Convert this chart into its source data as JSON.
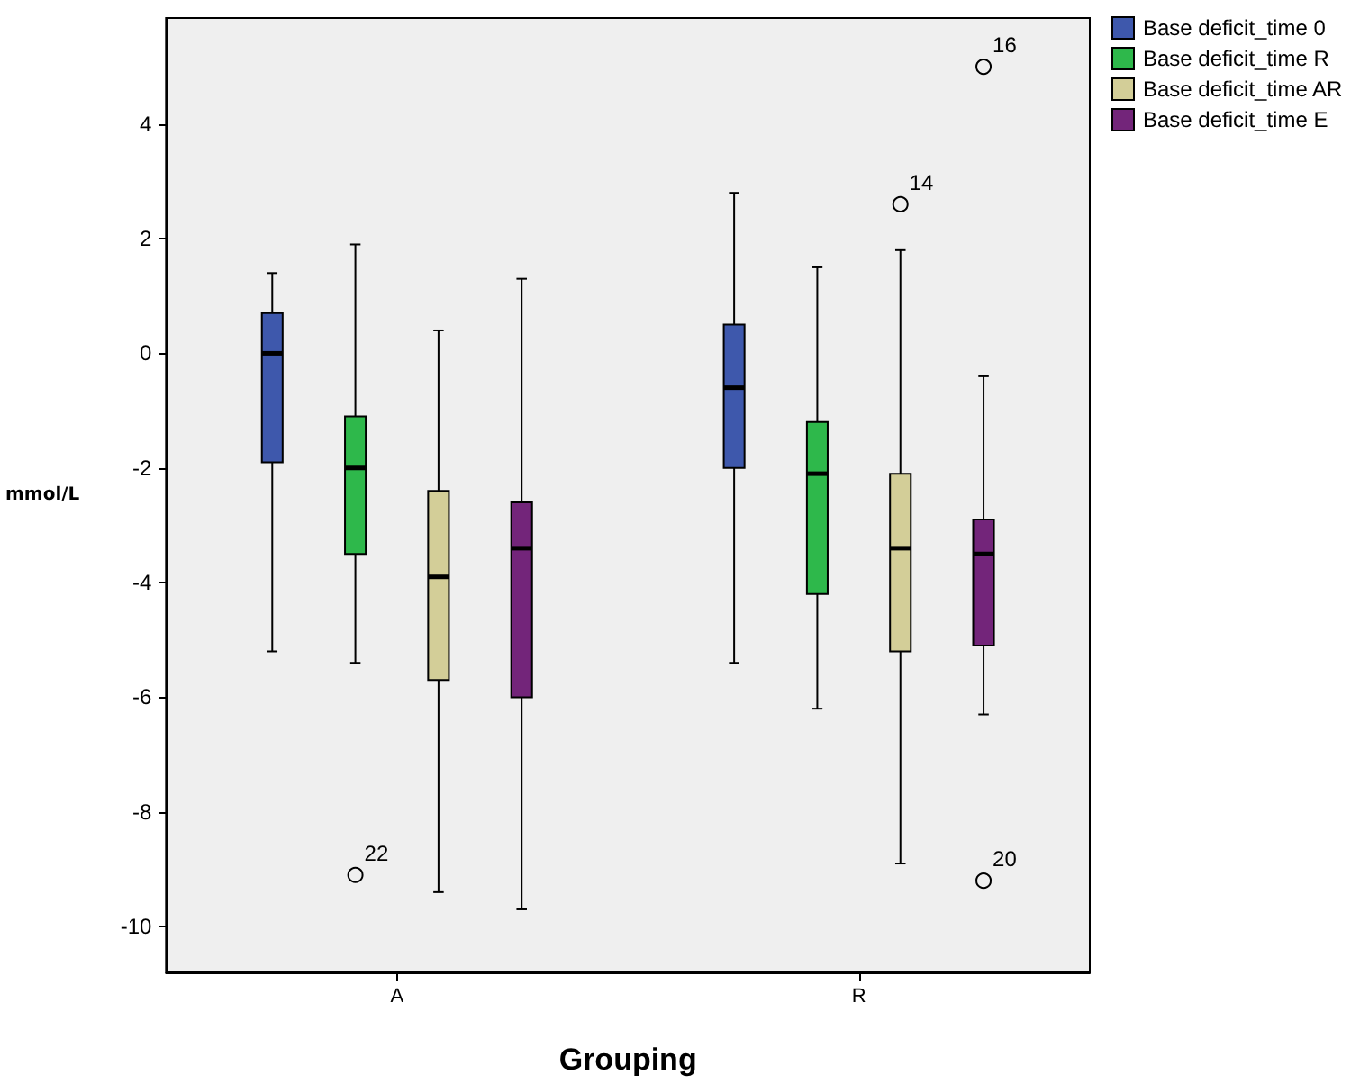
{
  "chart_data": {
    "type": "box",
    "xlabel": "Grouping",
    "ylabel": "mmol/L",
    "categories": [
      "A",
      "R"
    ],
    "series": [
      {
        "name": "Base deficit_time 0",
        "color": "#3e58ac",
        "boxes": [
          {
            "low": -5.2,
            "q1": -1.9,
            "median": 0,
            "q3": 0.7,
            "high": 1.4
          },
          {
            "low": -5.4,
            "q1": -2.0,
            "median": -0.6,
            "q3": 0.5,
            "high": 2.8
          }
        ]
      },
      {
        "name": "Base deficit_time R",
        "color": "#2eb84b",
        "boxes": [
          {
            "low": -5.4,
            "q1": -3.5,
            "median": -2.0,
            "q3": -1.1,
            "high": 1.9,
            "outliers": [
              -9.1
            ]
          },
          {
            "low": -6.2,
            "q1": -4.2,
            "median": -2.1,
            "q3": -1.2,
            "high": 1.5
          }
        ]
      },
      {
        "name": "Base deficit_time AR",
        "color": "#d3ce98",
        "boxes": [
          {
            "low": -9.4,
            "q1": -5.7,
            "median": -3.9,
            "q3": -2.4,
            "high": 0.4
          },
          {
            "low": -8.9,
            "q1": -5.2,
            "median": -3.4,
            "q3": -2.1,
            "high": 1.8,
            "outliers": [
              2.6
            ]
          }
        ]
      },
      {
        "name": "Base deficit_time E",
        "color": "#73257a",
        "boxes": [
          {
            "low": -9.7,
            "q1": -6.0,
            "median": -3.4,
            "q3": -2.6,
            "high": 1.3
          },
          {
            "low": -6.3,
            "q1": -5.1,
            "median": -3.5,
            "q3": -2.9,
            "high": -0.4,
            "outliers": [
              -9.2,
              5.0
            ]
          }
        ]
      }
    ],
    "annotations": [
      "22",
      "14",
      "20",
      "16"
    ],
    "ylim": [
      -10.8,
      5.85
    ],
    "yticks": [
      -10,
      -8,
      -6,
      -4,
      -2,
      0,
      2,
      4
    ],
    "grid": false,
    "legend": "top right"
  }
}
